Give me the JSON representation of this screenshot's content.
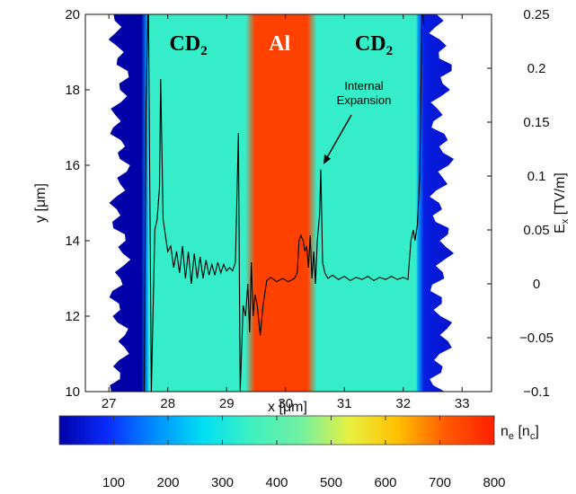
{
  "chart_data": {
    "type": "heatmap",
    "xlabel": "x [μm]",
    "ylabel": "y [μm]",
    "y2label": {
      "main": "E",
      "sub": "x",
      "rest": " [TV/m]"
    },
    "xlim": [
      26.6,
      33.5
    ],
    "ylim": [
      10,
      20
    ],
    "y2lim": [
      -0.1,
      0.25
    ],
    "x_ticks": [
      {
        "v": 27,
        "label": "27"
      },
      {
        "v": 28,
        "label": "28"
      },
      {
        "v": 29,
        "label": "29"
      },
      {
        "v": 30,
        "label": "30"
      },
      {
        "v": 31,
        "label": "31"
      },
      {
        "v": 32,
        "label": "32"
      },
      {
        "v": 33,
        "label": "33"
      }
    ],
    "y_ticks": [
      {
        "v": 10,
        "label": "10"
      },
      {
        "v": 12,
        "label": "12"
      },
      {
        "v": 14,
        "label": "14"
      },
      {
        "v": 16,
        "label": "16"
      },
      {
        "v": 18,
        "label": "18"
      },
      {
        "v": 20,
        "label": "20"
      }
    ],
    "y2_ticks": [
      {
        "v": -0.1,
        "label": "−0.1"
      },
      {
        "v": -0.05,
        "label": "−0.05"
      },
      {
        "v": 0,
        "label": "0"
      },
      {
        "v": 0.05,
        "label": "0.05"
      },
      {
        "v": 0.1,
        "label": "0.1"
      },
      {
        "v": 0.15,
        "label": "0.15"
      },
      {
        "v": 0.2,
        "label": "0.2"
      },
      {
        "v": 0.25,
        "label": "0.25"
      }
    ],
    "colorbar": {
      "label": {
        "main": "n",
        "sub1": "e",
        "mid": " [n",
        "sub2": "c",
        "end": "]"
      },
      "range": [
        0,
        800
      ],
      "ticks": [
        {
          "v": 100,
          "label": "100"
        },
        {
          "v": 200,
          "label": "200"
        },
        {
          "v": 300,
          "label": "300"
        },
        {
          "v": 400,
          "label": "400"
        },
        {
          "v": 500,
          "label": "500"
        },
        {
          "v": 600,
          "label": "600"
        },
        {
          "v": 700,
          "label": "700"
        },
        {
          "v": 800,
          "label": "800"
        }
      ],
      "colors": [
        "#0000a8",
        "#0a2cff",
        "#0090ff",
        "#00e0f0",
        "#40f0c0",
        "#70f0a0",
        "#e8f040",
        "#ffc000",
        "#ff5a00",
        "#ff2000"
      ]
    },
    "regions": [
      {
        "label": "CD",
        "sub": "2",
        "x_center": 28.35,
        "x_from": 27.6,
        "x_to": 29.4,
        "density": 340
      },
      {
        "label": "Al",
        "sub": "",
        "x_center": 29.9,
        "x_from": 29.4,
        "x_to": 30.45,
        "density": 750
      },
      {
        "label": "CD",
        "sub": "2",
        "x_center": 31.5,
        "x_from": 30.45,
        "x_to": 32.3,
        "density": 340
      }
    ],
    "annotation": {
      "lines": [
        "Internal",
        "Expansion"
      ],
      "target_x": 30.6,
      "target_E": 0.106
    },
    "ex_series": {
      "name": "Ex",
      "points": [
        [
          27.6,
          -0.1
        ],
        [
          27.63,
          0.16
        ],
        [
          27.67,
          0.27
        ],
        [
          27.72,
          -0.1
        ],
        [
          27.78,
          0.05
        ],
        [
          27.82,
          0.06
        ],
        [
          27.86,
          0.09
        ],
        [
          27.88,
          0.19
        ],
        [
          27.92,
          0.06
        ],
        [
          27.96,
          0.045
        ],
        [
          28.0,
          0.03
        ],
        [
          28.05,
          0.035
        ],
        [
          28.1,
          0.015
        ],
        [
          28.15,
          0.03
        ],
        [
          28.2,
          0.01
        ],
        [
          28.25,
          0.035
        ],
        [
          28.3,
          0.005
        ],
        [
          28.35,
          0.03
        ],
        [
          28.4,
          0.0
        ],
        [
          28.45,
          0.028
        ],
        [
          28.5,
          0.005
        ],
        [
          28.55,
          0.025
        ],
        [
          28.6,
          0.005
        ],
        [
          28.65,
          0.022
        ],
        [
          28.7,
          0.008
        ],
        [
          28.75,
          0.018
        ],
        [
          28.8,
          0.008
        ],
        [
          28.85,
          0.02
        ],
        [
          28.9,
          0.01
        ],
        [
          28.95,
          0.018
        ],
        [
          29.0,
          0.012
        ],
        [
          29.05,
          0.015
        ],
        [
          29.1,
          0.012
        ],
        [
          29.15,
          0.02
        ],
        [
          29.2,
          0.14
        ],
        [
          29.23,
          -0.1
        ],
        [
          29.28,
          -0.02
        ],
        [
          29.32,
          -0.03
        ],
        [
          29.36,
          0.0
        ],
        [
          29.39,
          -0.045
        ],
        [
          29.42,
          0.02
        ],
        [
          29.45,
          -0.03
        ],
        [
          29.48,
          -0.01
        ],
        [
          29.52,
          -0.02
        ],
        [
          29.57,
          -0.048
        ],
        [
          29.62,
          -0.02
        ],
        [
          29.68,
          0.003
        ],
        [
          29.75,
          0.006
        ],
        [
          29.85,
          0.002
        ],
        [
          29.95,
          0.005
        ],
        [
          30.05,
          0.002
        ],
        [
          30.15,
          0.005
        ],
        [
          30.2,
          0.01
        ],
        [
          30.23,
          0.04
        ],
        [
          30.26,
          0.045
        ],
        [
          30.3,
          0.04
        ],
        [
          30.33,
          0.03
        ],
        [
          30.36,
          0.035
        ],
        [
          30.39,
          0.015
        ],
        [
          30.42,
          0.045
        ],
        [
          30.45,
          0.005
        ],
        [
          30.48,
          0.03
        ],
        [
          30.51,
          0.0
        ],
        [
          30.54,
          0.04
        ],
        [
          30.58,
          0.065
        ],
        [
          30.6,
          0.106
        ],
        [
          30.63,
          0.02
        ],
        [
          30.67,
          0.01
        ],
        [
          30.72,
          0.005
        ],
        [
          30.8,
          0.008
        ],
        [
          30.9,
          0.004
        ],
        [
          31.0,
          0.007
        ],
        [
          31.1,
          0.003
        ],
        [
          31.2,
          0.006
        ],
        [
          31.3,
          0.004
        ],
        [
          31.4,
          0.007
        ],
        [
          31.5,
          0.003
        ],
        [
          31.6,
          0.006
        ],
        [
          31.7,
          0.004
        ],
        [
          31.8,
          0.007
        ],
        [
          31.9,
          0.004
        ],
        [
          32.0,
          0.006
        ],
        [
          32.08,
          0.004
        ],
        [
          32.13,
          0.04
        ],
        [
          32.17,
          0.05
        ],
        [
          32.2,
          0.04
        ],
        [
          32.24,
          0.055
        ],
        [
          32.28,
          0.1
        ],
        [
          32.32,
          0.26
        ],
        [
          32.35,
          0.24
        ]
      ]
    }
  }
}
